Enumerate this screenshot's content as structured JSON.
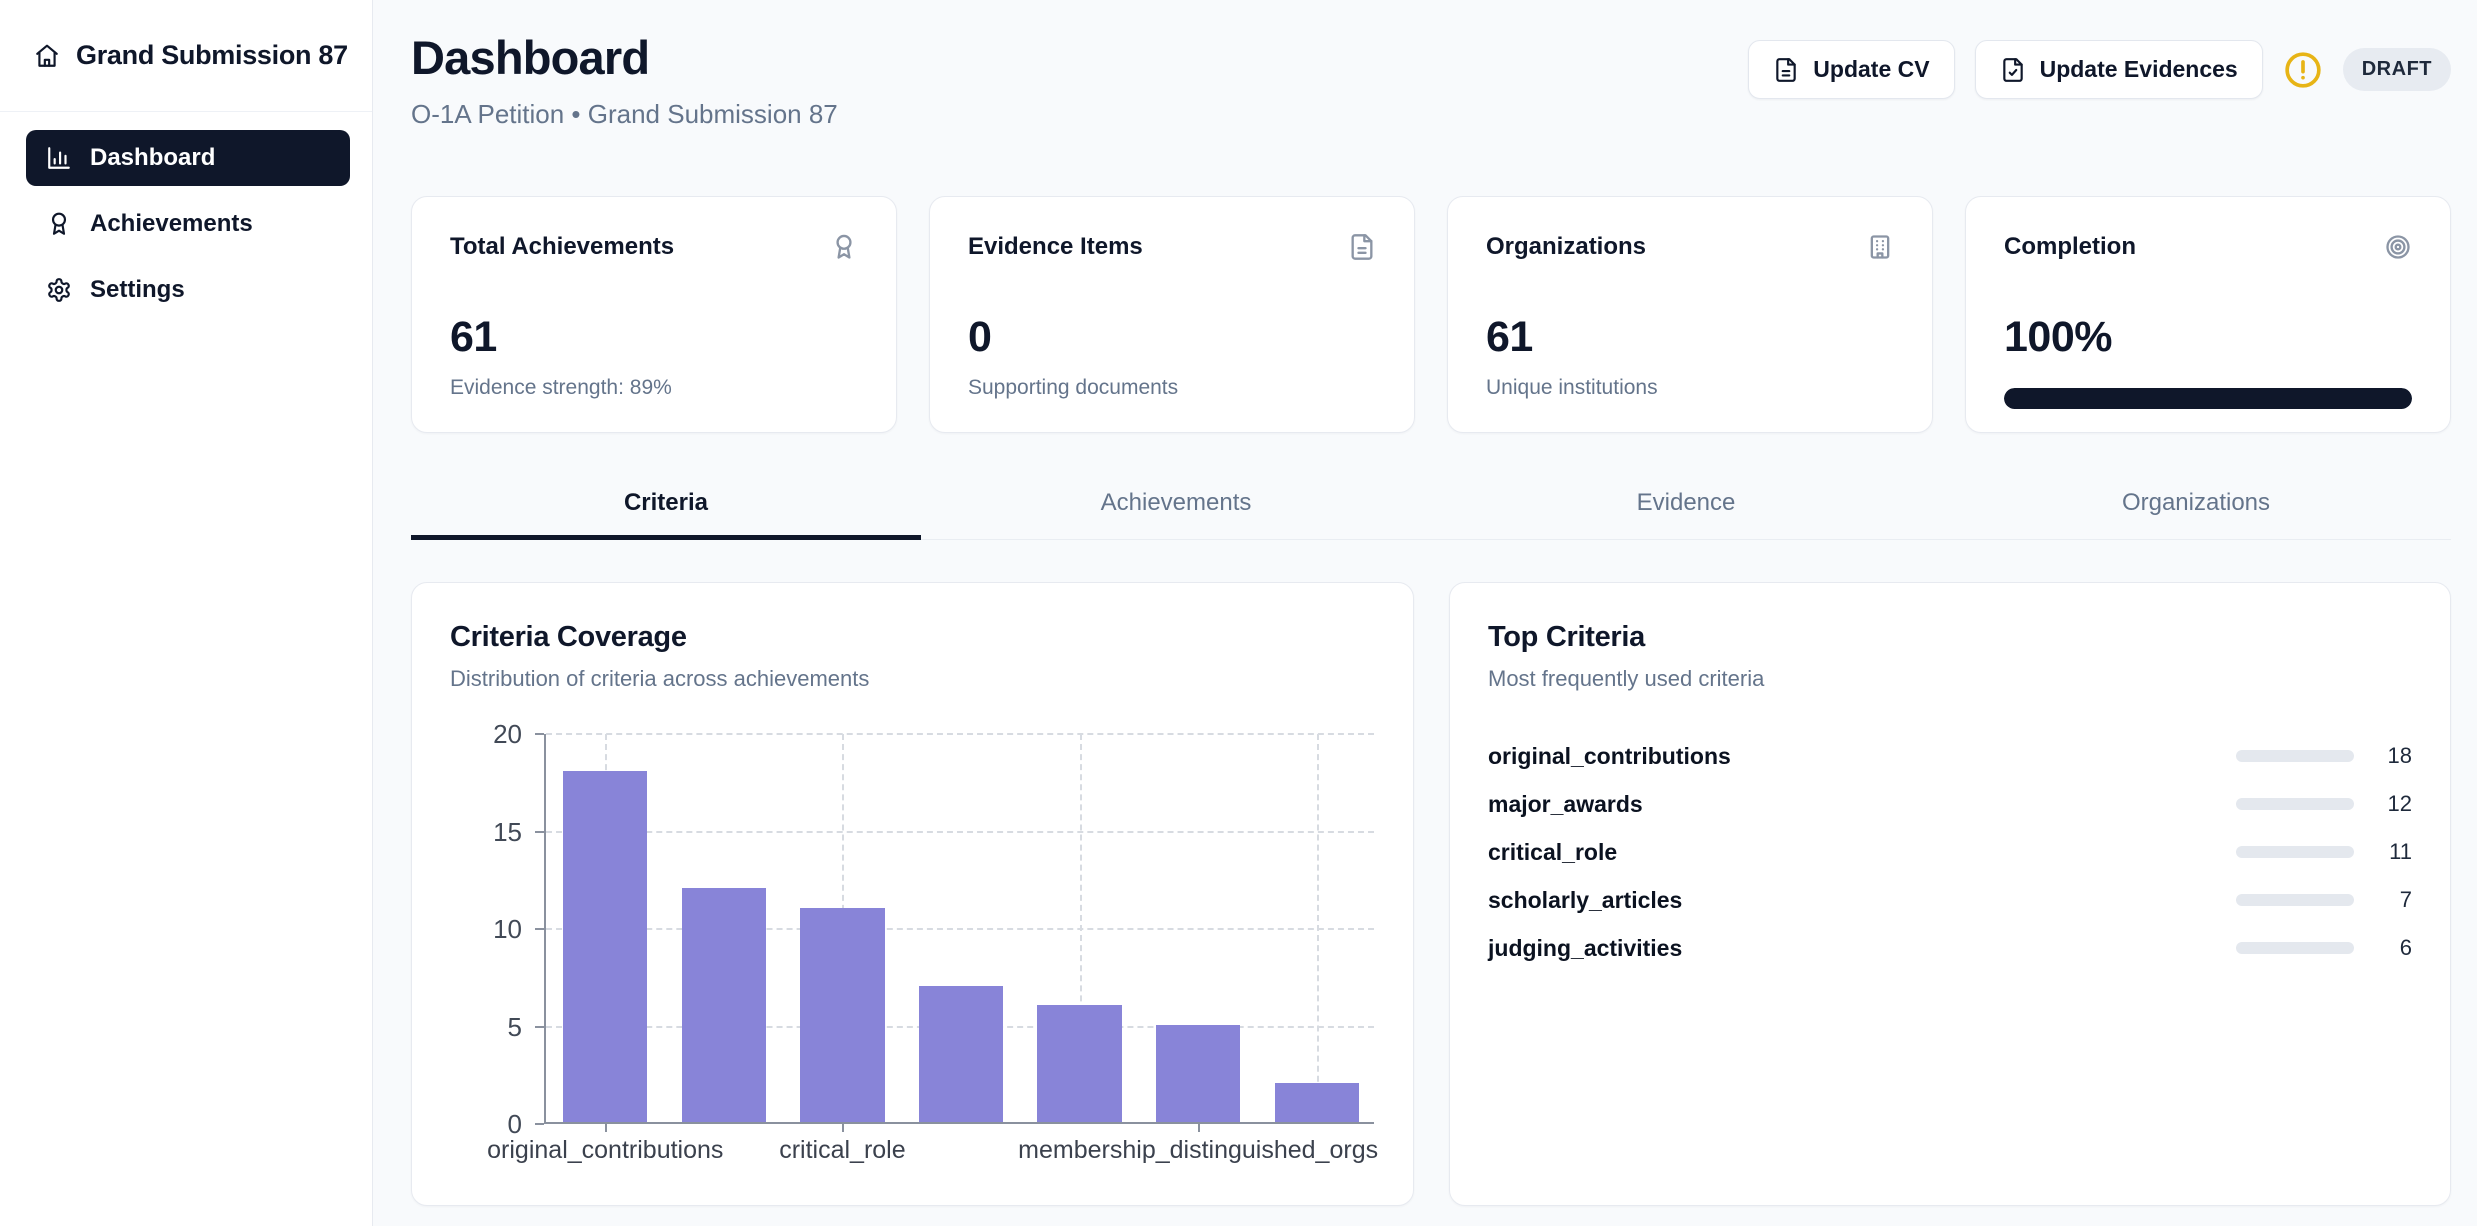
{
  "sidebar": {
    "title": "Grand Submission 87",
    "items": [
      {
        "label": "Dashboard",
        "icon": "chart-column-icon",
        "active": true
      },
      {
        "label": "Achievements",
        "icon": "award-icon",
        "active": false
      },
      {
        "label": "Settings",
        "icon": "gear-icon",
        "active": false
      }
    ]
  },
  "header": {
    "title": "Dashboard",
    "subtitle": "O-1A Petition • Grand Submission 87",
    "buttons": [
      {
        "label": "Update CV",
        "icon": "file-text-icon"
      },
      {
        "label": "Update Evidences",
        "icon": "file-check-icon"
      }
    ],
    "warning_icon": "alert-circle-icon",
    "warning_color": "#e7b416",
    "status_badge": "DRAFT"
  },
  "stat_cards": [
    {
      "title": "Total Achievements",
      "icon": "award-icon",
      "value": "61",
      "subtext": "Evidence strength: 89%"
    },
    {
      "title": "Evidence Items",
      "icon": "file-text-icon",
      "value": "0",
      "subtext": "Supporting documents"
    },
    {
      "title": "Organizations",
      "icon": "building-icon",
      "value": "61",
      "subtext": "Unique institutions"
    },
    {
      "title": "Completion",
      "icon": "target-icon",
      "value": "100%",
      "progress_percent": 100,
      "progress_color": "#0f172a"
    }
  ],
  "tabs": [
    {
      "label": "Criteria",
      "active": true
    },
    {
      "label": "Achievements",
      "active": false
    },
    {
      "label": "Evidence",
      "active": false
    },
    {
      "label": "Organizations",
      "active": false
    }
  ],
  "criteria_coverage": {
    "title": "Criteria Coverage",
    "subtitle": "Distribution of criteria across achievements"
  },
  "chart_data": {
    "type": "bar",
    "title": "Criteria Coverage",
    "values": [
      18,
      12,
      11,
      7,
      6,
      5,
      2
    ],
    "x_tick_labels": [
      "original_contributions",
      "critical_role",
      "membership_distinguished_orgs"
    ],
    "x_tick_label_positions": [
      0,
      2,
      5
    ],
    "y_ticks": [
      0,
      5,
      10,
      15,
      20
    ],
    "ylim": [
      0,
      20
    ],
    "bar_color": "#8884d8",
    "grid": "dashed",
    "legend": "none"
  },
  "top_criteria": {
    "title": "Top Criteria",
    "subtitle": "Most frequently used criteria",
    "bar_color": "#2563eb",
    "items": [
      {
        "label": "original_contributions",
        "value": 18
      },
      {
        "label": "major_awards",
        "value": 12
      },
      {
        "label": "critical_role",
        "value": 11
      },
      {
        "label": "scholarly_articles",
        "value": 7
      },
      {
        "label": "judging_activities",
        "value": 6
      }
    ]
  },
  "colors": {
    "navy": "#0f172a",
    "muted_text": "#64748b",
    "purple_bar": "#8884d8",
    "blue_bar": "#2563eb",
    "amber": "#e7b416",
    "page_bg": "#f8fafc",
    "card_border": "#e7eaf0"
  }
}
